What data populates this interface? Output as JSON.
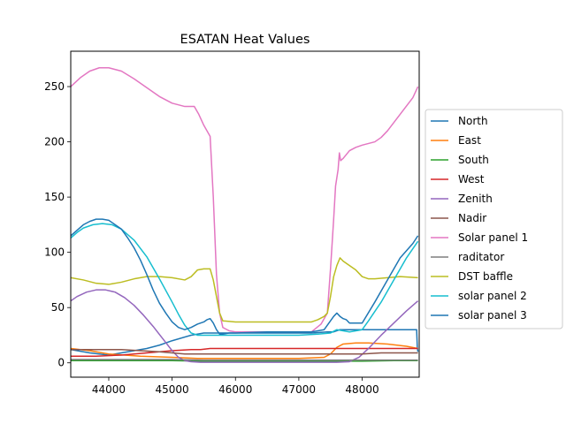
{
  "chart_data": {
    "type": "line",
    "title": "ESATAN Heat Values",
    "xlabel": "",
    "ylabel": "",
    "xlim": [
      43400,
      48900
    ],
    "ylim": [
      -13,
      282
    ],
    "x_ticks": [
      44000,
      45000,
      46000,
      47000,
      48000
    ],
    "y_ticks": [
      0,
      50,
      100,
      150,
      200,
      250
    ],
    "grid": false,
    "legend_position": "center-right",
    "series": [
      {
        "name": "North",
        "color": "#1f77b4",
        "x": [
          43400,
          43700,
          44000,
          44300,
          44600,
          44800,
          45000,
          45300,
          45500,
          45600,
          45700,
          45800,
          46200,
          46800,
          47200,
          47450,
          47550,
          47600,
          47650,
          47700,
          47800,
          48000,
          48300,
          48600,
          48860,
          48870,
          48880
        ],
        "y": [
          12,
          9,
          7,
          10,
          13,
          16,
          20,
          25,
          27,
          27,
          27,
          27,
          27,
          27,
          27,
          28,
          28,
          29,
          30,
          30,
          30,
          30,
          30,
          30,
          30,
          14,
          10
        ]
      },
      {
        "name": "East",
        "color": "#ff7f0e",
        "x": [
          43400,
          43700,
          44000,
          44500,
          45000,
          45400,
          45800,
          46400,
          47000,
          47400,
          47500,
          47600,
          47700,
          47900,
          48100,
          48400,
          48700,
          48880
        ],
        "y": [
          13,
          11,
          8,
          6,
          5,
          4,
          4,
          4,
          4,
          5,
          8,
          14,
          17,
          18,
          18,
          17,
          15,
          13
        ]
      },
      {
        "name": "South",
        "color": "#2ca02c",
        "x": [
          43400,
          44000,
          44500,
          45000,
          45500,
          46000,
          46500,
          47000,
          47500,
          48000,
          48500,
          48880
        ],
        "y": [
          2,
          2,
          2,
          2,
          1.5,
          1.5,
          1.5,
          1.5,
          1.5,
          1.5,
          2,
          2
        ]
      },
      {
        "name": "West",
        "color": "#d62728",
        "x": [
          43400,
          43800,
          44200,
          44600,
          45000,
          45300,
          45450,
          45600,
          46000,
          46500,
          47000,
          47400,
          47600,
          47800,
          48200,
          48600,
          48880
        ],
        "y": [
          6,
          6,
          7,
          9,
          11,
          12,
          12,
          13,
          13,
          13,
          13,
          13,
          13,
          13,
          13,
          13,
          13
        ]
      },
      {
        "name": "Zenith",
        "color": "#9467bd",
        "x": [
          43400,
          43500,
          43650,
          43800,
          43950,
          44100,
          44250,
          44400,
          44550,
          44700,
          44850,
          45000,
          45100,
          45200,
          45300,
          45450,
          45700,
          46000,
          46500,
          47000,
          47400,
          47600,
          47800,
          47950,
          48100,
          48300,
          48500,
          48700,
          48880
        ],
        "y": [
          56,
          60,
          64,
          66,
          66,
          64,
          59,
          52,
          43,
          33,
          22,
          11,
          5,
          2,
          1,
          0.5,
          0.5,
          0.5,
          0.5,
          0.5,
          0.5,
          0.5,
          1,
          5,
          13,
          25,
          36,
          47,
          56
        ]
      },
      {
        "name": "Nadir",
        "color": "#8c564b",
        "x": [
          43400,
          43600,
          43900,
          44200,
          44500,
          44800,
          45000,
          45200,
          45500,
          46000,
          46500,
          47000,
          47500,
          48000,
          48300,
          48600,
          48880
        ],
        "y": [
          12,
          12,
          12,
          12,
          11,
          10,
          9,
          8,
          8,
          8,
          8,
          8,
          8,
          8,
          9,
          9,
          9
        ]
      },
      {
        "name": "Solar panel 1",
        "color": "#e377c2",
        "x": [
          43400,
          43550,
          43700,
          43850,
          44000,
          44200,
          44400,
          44600,
          44800,
          45000,
          45200,
          45350,
          45420,
          45500,
          45600,
          45650,
          45700,
          45750,
          45800,
          45900,
          46000,
          46500,
          47000,
          47200,
          47350,
          47450,
          47500,
          47550,
          47580,
          47620,
          47640,
          47660,
          47700,
          47800,
          47900,
          48000,
          48200,
          48300,
          48400,
          48600,
          48800,
          48880
        ],
        "y": [
          250,
          258,
          264,
          267,
          267,
          264,
          257,
          249,
          241,
          235,
          232,
          232,
          225,
          215,
          205,
          150,
          80,
          45,
          32,
          29,
          28,
          28,
          28,
          28,
          35,
          45,
          85,
          130,
          160,
          175,
          190,
          183,
          185,
          192,
          195,
          197,
          200,
          204,
          210,
          225,
          240,
          250
        ]
      },
      {
        "name": "raditator",
        "color": "#7f7f7f",
        "x": [
          43400,
          44000,
          44500,
          45000,
          45500,
          46000,
          46500,
          47000,
          47500,
          48000,
          48500,
          48880
        ],
        "y": [
          3,
          3,
          3,
          3,
          2.5,
          2.5,
          2.5,
          2.5,
          2.5,
          2.5,
          2.5,
          2.5
        ]
      },
      {
        "name": "DST baffle",
        "color": "#bcbd22",
        "x": [
          43400,
          43600,
          43800,
          44000,
          44200,
          44400,
          44600,
          44800,
          45000,
          45200,
          45300,
          45400,
          45500,
          45600,
          45650,
          45700,
          45750,
          45800,
          46000,
          46500,
          47000,
          47200,
          47300,
          47400,
          47450,
          47500,
          47550,
          47600,
          47650,
          47700,
          47800,
          47900,
          48000,
          48100,
          48200,
          48400,
          48600,
          48880
        ],
        "y": [
          77,
          75,
          72,
          71,
          73,
          76,
          78,
          78,
          77,
          75,
          78,
          84,
          85,
          85,
          75,
          60,
          45,
          38,
          37,
          37,
          37,
          37,
          39,
          42,
          45,
          60,
          78,
          88,
          95,
          92,
          88,
          84,
          78,
          76,
          76,
          77,
          78,
          77
        ]
      },
      {
        "name": "solar panel 2",
        "color": "#17becf",
        "x": [
          43400,
          43500,
          43600,
          43750,
          43900,
          44050,
          44200,
          44400,
          44600,
          44800,
          45000,
          45100,
          45200,
          45300,
          45400,
          45600,
          46000,
          46500,
          47000,
          47300,
          47500,
          47600,
          47700,
          47800,
          48000,
          48100,
          48300,
          48500,
          48700,
          48880
        ],
        "y": [
          113,
          118,
          122,
          125,
          126,
          125,
          121,
          111,
          96,
          76,
          55,
          44,
          34,
          27,
          25,
          25,
          25,
          25,
          25,
          26,
          27,
          30,
          29,
          28,
          30,
          38,
          55,
          75,
          95,
          110
        ]
      },
      {
        "name": "solar panel 3",
        "color": "#1f77b4",
        "x": [
          43400,
          43500,
          43600,
          43700,
          43800,
          43900,
          44000,
          44100,
          44200,
          44300,
          44400,
          44500,
          44600,
          44700,
          44800,
          44900,
          45000,
          45100,
          45200,
          45300,
          45400,
          45500,
          45550,
          45600,
          45650,
          45700,
          45750,
          45800,
          45900,
          46000,
          46500,
          47000,
          47200,
          47400,
          47500,
          47550,
          47600,
          47650,
          47700,
          47750,
          47800,
          47900,
          48000,
          48200,
          48400,
          48600,
          48800,
          48880
        ],
        "y": [
          115,
          120,
          125,
          128,
          130,
          130,
          129,
          125,
          121,
          113,
          104,
          93,
          80,
          66,
          54,
          45,
          37,
          32,
          30,
          32,
          35,
          37,
          39,
          40,
          36,
          30,
          26,
          26,
          27,
          27,
          28,
          28,
          28,
          30,
          38,
          42,
          45,
          42,
          40,
          39,
          36,
          36,
          36,
          55,
          75,
          95,
          108,
          115
        ]
      }
    ]
  }
}
